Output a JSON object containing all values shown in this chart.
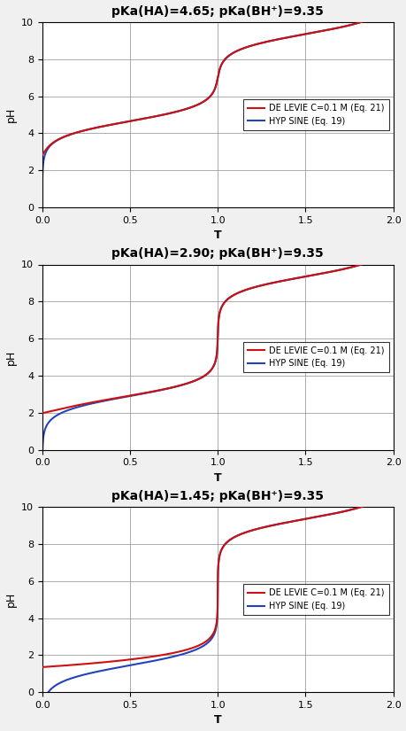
{
  "subplots": [
    {
      "title": "pKa(HA)=4.65; pKa(BH+)=9.35",
      "pKa_HA": 4.65,
      "pKa_BH": 9.35
    },
    {
      "title": "pKa(HA)=2.90; pKa(BH+)=9.35",
      "pKa_HA": 2.9,
      "pKa_BH": 9.35
    },
    {
      "title": "pKa(HA)=1.45; pKa(BH+)=9.35",
      "pKa_HA": 1.45,
      "pKa_BH": 9.35
    }
  ],
  "C": 0.1,
  "T_range": [
    0.0,
    2.0
  ],
  "ylim": [
    0,
    10
  ],
  "yticks": [
    0,
    2,
    4,
    6,
    8,
    10
  ],
  "xticks": [
    0.0,
    0.5,
    1.0,
    1.5,
    2.0
  ],
  "xlabel": "T",
  "ylabel": "pH",
  "color_delevie": "#cc1111",
  "color_hypsine": "#2244bb",
  "legend_label_delevie": "DE LEVIE C=0.1 M (Eq. 21)",
  "legend_label_hypsine": "HYP SINE (Eq. 19)",
  "linewidth": 1.5,
  "title_fontsize": 10,
  "label_fontsize": 9,
  "tick_fontsize": 8,
  "legend_fontsize": 7
}
